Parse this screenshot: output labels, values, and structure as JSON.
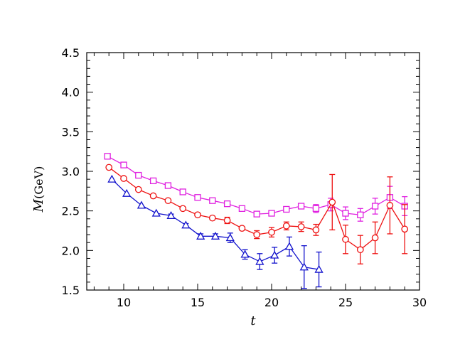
{
  "chart_data": {
    "type": "scatter",
    "title": "",
    "xlabel": "t",
    "ylabel_symbol": "M",
    "ylabel_unit": "(GeV)",
    "xlim": [
      7.5,
      30
    ],
    "ylim": [
      1.5,
      4.5
    ],
    "xticks": [
      10,
      15,
      20,
      25,
      30
    ],
    "yticks": [
      1.5,
      2.0,
      2.5,
      3.0,
      3.5,
      4.0,
      4.5
    ],
    "ytick_labels": [
      "1.5",
      "2.0",
      "2.5",
      "3.0",
      "3.5",
      "4.0",
      "4.5"
    ],
    "grid": false,
    "series": [
      {
        "marker": "square",
        "color": "#e020e0",
        "points": [
          {
            "x": 8.9,
            "y": 3.19,
            "err": 0.01
          },
          {
            "x": 10.0,
            "y": 3.08,
            "err": 0.01
          },
          {
            "x": 11.0,
            "y": 2.95,
            "err": 0.01
          },
          {
            "x": 12.0,
            "y": 2.88,
            "err": 0.01
          },
          {
            "x": 13.0,
            "y": 2.82,
            "err": 0.01
          },
          {
            "x": 14.0,
            "y": 2.74,
            "err": 0.01
          },
          {
            "x": 15.0,
            "y": 2.67,
            "err": 0.01
          },
          {
            "x": 16.0,
            "y": 2.63,
            "err": 0.01
          },
          {
            "x": 17.0,
            "y": 2.59,
            "err": 0.01
          },
          {
            "x": 18.0,
            "y": 2.53,
            "err": 0.02
          },
          {
            "x": 19.0,
            "y": 2.46,
            "err": 0.02
          },
          {
            "x": 20.0,
            "y": 2.47,
            "err": 0.03
          },
          {
            "x": 21.0,
            "y": 2.52,
            "err": 0.03
          },
          {
            "x": 22.0,
            "y": 2.56,
            "err": 0.03
          },
          {
            "x": 23.0,
            "y": 2.53,
            "err": 0.05
          },
          {
            "x": 24.0,
            "y": 2.58,
            "err": 0.08
          },
          {
            "x": 25.0,
            "y": 2.47,
            "err": 0.08
          },
          {
            "x": 26.0,
            "y": 2.45,
            "err": 0.08
          },
          {
            "x": 27.0,
            "y": 2.56,
            "err": 0.1
          },
          {
            "x": 28.0,
            "y": 2.67,
            "err": 0.14
          },
          {
            "x": 29.0,
            "y": 2.56,
            "err": 0.12
          }
        ]
      },
      {
        "marker": "circle",
        "color": "#ee1111",
        "points": [
          {
            "x": 9.0,
            "y": 3.05,
            "err": 0.01
          },
          {
            "x": 10.0,
            "y": 2.91,
            "err": 0.01
          },
          {
            "x": 11.0,
            "y": 2.77,
            "err": 0.01
          },
          {
            "x": 12.0,
            "y": 2.69,
            "err": 0.01
          },
          {
            "x": 13.0,
            "y": 2.63,
            "err": 0.01
          },
          {
            "x": 14.0,
            "y": 2.53,
            "err": 0.01
          },
          {
            "x": 15.0,
            "y": 2.45,
            "err": 0.02
          },
          {
            "x": 16.0,
            "y": 2.41,
            "err": 0.02
          },
          {
            "x": 17.0,
            "y": 2.38,
            "err": 0.04
          },
          {
            "x": 18.0,
            "y": 2.28,
            "err": 0.02
          },
          {
            "x": 19.0,
            "y": 2.2,
            "err": 0.05
          },
          {
            "x": 20.0,
            "y": 2.23,
            "err": 0.06
          },
          {
            "x": 21.0,
            "y": 2.31,
            "err": 0.05
          },
          {
            "x": 22.0,
            "y": 2.3,
            "err": 0.06
          },
          {
            "x": 23.0,
            "y": 2.26,
            "err": 0.07
          },
          {
            "x": 24.1,
            "y": 2.61,
            "err": 0.35
          },
          {
            "x": 25.0,
            "y": 2.14,
            "err": 0.18
          },
          {
            "x": 26.0,
            "y": 2.01,
            "err": 0.18
          },
          {
            "x": 27.0,
            "y": 2.16,
            "err": 0.2
          },
          {
            "x": 28.0,
            "y": 2.57,
            "err": 0.36
          },
          {
            "x": 29.0,
            "y": 2.27,
            "err": 0.31
          }
        ]
      },
      {
        "marker": "triangle",
        "color": "#1111cc",
        "points": [
          {
            "x": 9.2,
            "y": 2.9,
            "err": 0.01
          },
          {
            "x": 10.2,
            "y": 2.72,
            "err": 0.01
          },
          {
            "x": 11.2,
            "y": 2.57,
            "err": 0.01
          },
          {
            "x": 12.2,
            "y": 2.47,
            "err": 0.01
          },
          {
            "x": 13.2,
            "y": 2.44,
            "err": 0.02
          },
          {
            "x": 14.2,
            "y": 2.32,
            "err": 0.02
          },
          {
            "x": 15.2,
            "y": 2.18,
            "err": 0.03
          },
          {
            "x": 16.2,
            "y": 2.18,
            "err": 0.03
          },
          {
            "x": 17.2,
            "y": 2.16,
            "err": 0.06
          },
          {
            "x": 18.2,
            "y": 1.95,
            "err": 0.06
          },
          {
            "x": 19.2,
            "y": 1.86,
            "err": 0.1
          },
          {
            "x": 20.2,
            "y": 1.94,
            "err": 0.1
          },
          {
            "x": 21.2,
            "y": 2.05,
            "err": 0.12
          },
          {
            "x": 22.2,
            "y": 1.79,
            "err": 0.27
          },
          {
            "x": 23.2,
            "y": 1.76,
            "err": 0.22
          }
        ]
      }
    ]
  }
}
